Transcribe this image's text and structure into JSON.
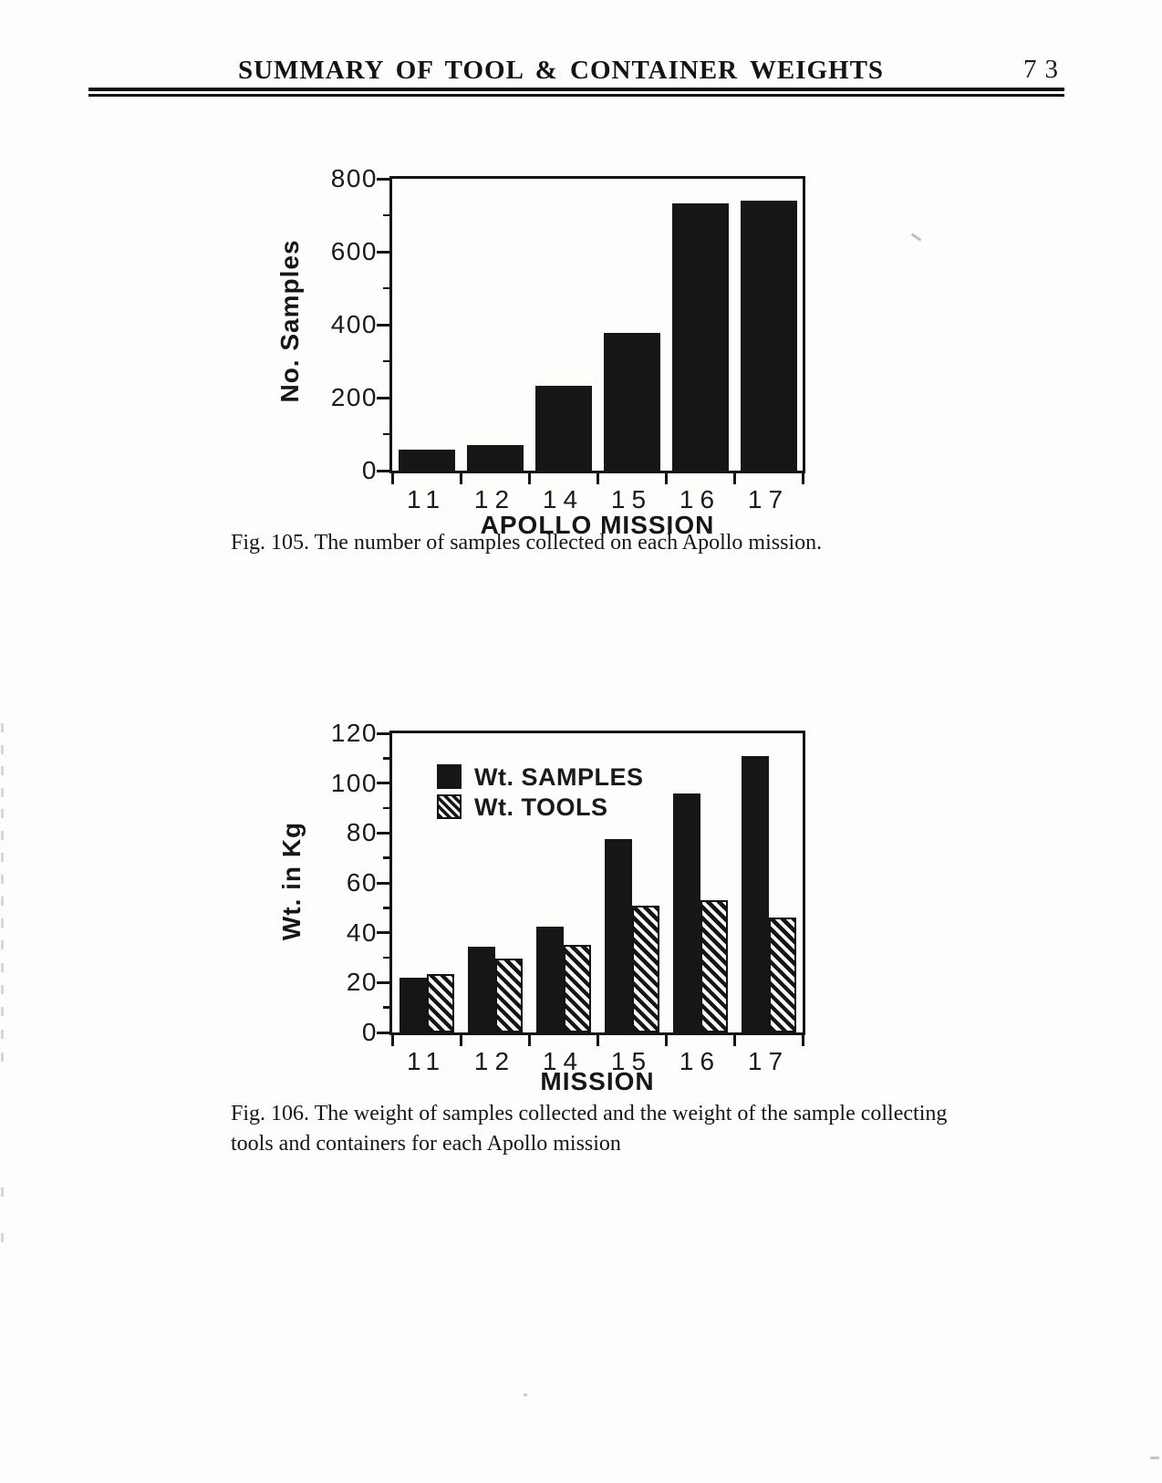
{
  "page": {
    "header_title": "SUMMARY OF TOOL & CONTAINER WEIGHTS",
    "page_number": "73"
  },
  "chart_data": [
    {
      "type": "bar",
      "xlabel": "APOLLO MISSION",
      "ylabel": "No. Samples",
      "categories": [
        "11",
        "12",
        "14",
        "15",
        "16",
        "17"
      ],
      "values": [
        58,
        70,
        233,
        378,
        732,
        741
      ],
      "ylim": [
        0,
        800
      ],
      "yticks": [
        0,
        200,
        400,
        600,
        800
      ],
      "yminor_step": 100,
      "grid": false,
      "legend": null,
      "caption_lines": [
        "Fig. 105. The number of samples collected on each Apollo mission."
      ]
    },
    {
      "type": "bar",
      "xlabel": "MISSION",
      "ylabel": "Wt. in Kg",
      "categories": [
        "11",
        "12",
        "14",
        "15",
        "16",
        "17"
      ],
      "series": [
        {
          "name": "Wt. SAMPLES",
          "style": "solid",
          "values": [
            22,
            34.5,
            42.5,
            77.5,
            96,
            111
          ]
        },
        {
          "name": "Wt. TOOLS",
          "style": "hatched",
          "values": [
            23.5,
            29.5,
            35,
            51,
            53,
            46
          ]
        }
      ],
      "ylim": [
        0,
        120
      ],
      "yticks": [
        0,
        20,
        40,
        60,
        80,
        100,
        120
      ],
      "yminor_step": 10,
      "grid": false,
      "legend_position": "top-left",
      "caption_lines": [
        "Fig. 106.  The weight of samples collected and the weight of the sample collecting",
        "tools and containers for each Apollo mission"
      ]
    }
  ],
  "colors": {
    "ink": "#151515",
    "paper": "#fdfdfb"
  }
}
